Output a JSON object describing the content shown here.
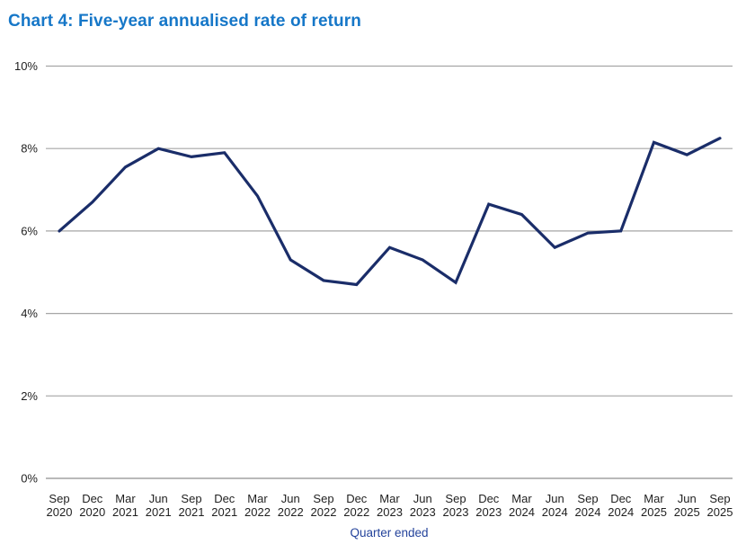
{
  "chart_data": {
    "type": "line",
    "title": "Chart 4: Five-year annualised rate of return",
    "xlabel": "Quarter ended",
    "ylabel": "",
    "categories": [
      "Sep 2020",
      "Dec 2020",
      "Mar 2021",
      "Jun 2021",
      "Sep 2021",
      "Dec 2021",
      "Mar 2022",
      "Jun 2022",
      "Sep 2022",
      "Dec 2022",
      "Mar 2023",
      "Jun 2023",
      "Sep 2023",
      "Dec 2023",
      "Mar 2024",
      "Jun 2024",
      "Sep 2024",
      "Dec 2024",
      "Mar 2025",
      "Jun 2025",
      "Sep 2025"
    ],
    "series": [
      {
        "name": "Five-year annualised rate of return",
        "values": [
          6.0,
          6.7,
          7.55,
          8.0,
          7.8,
          7.9,
          6.85,
          5.3,
          4.8,
          4.7,
          5.6,
          5.3,
          4.75,
          6.65,
          6.4,
          5.6,
          5.95,
          6.0,
          8.15,
          7.85,
          8.25
        ]
      }
    ],
    "ylim": [
      0,
      10
    ],
    "yticks": [
      0,
      2,
      4,
      6,
      8,
      10
    ],
    "ytick_labels": [
      "0%",
      "2%",
      "4%",
      "6%",
      "8%",
      "10%"
    ],
    "grid": "horizontal",
    "legend": "none",
    "colors": {
      "title": "#1677c8",
      "line": "#1a2d69",
      "gridline": "#a6a6a6",
      "baseline": "#8f8f8f",
      "tick_text": "#1f1f1f",
      "axis_label": "#24439b",
      "background": "#ffffff"
    }
  }
}
